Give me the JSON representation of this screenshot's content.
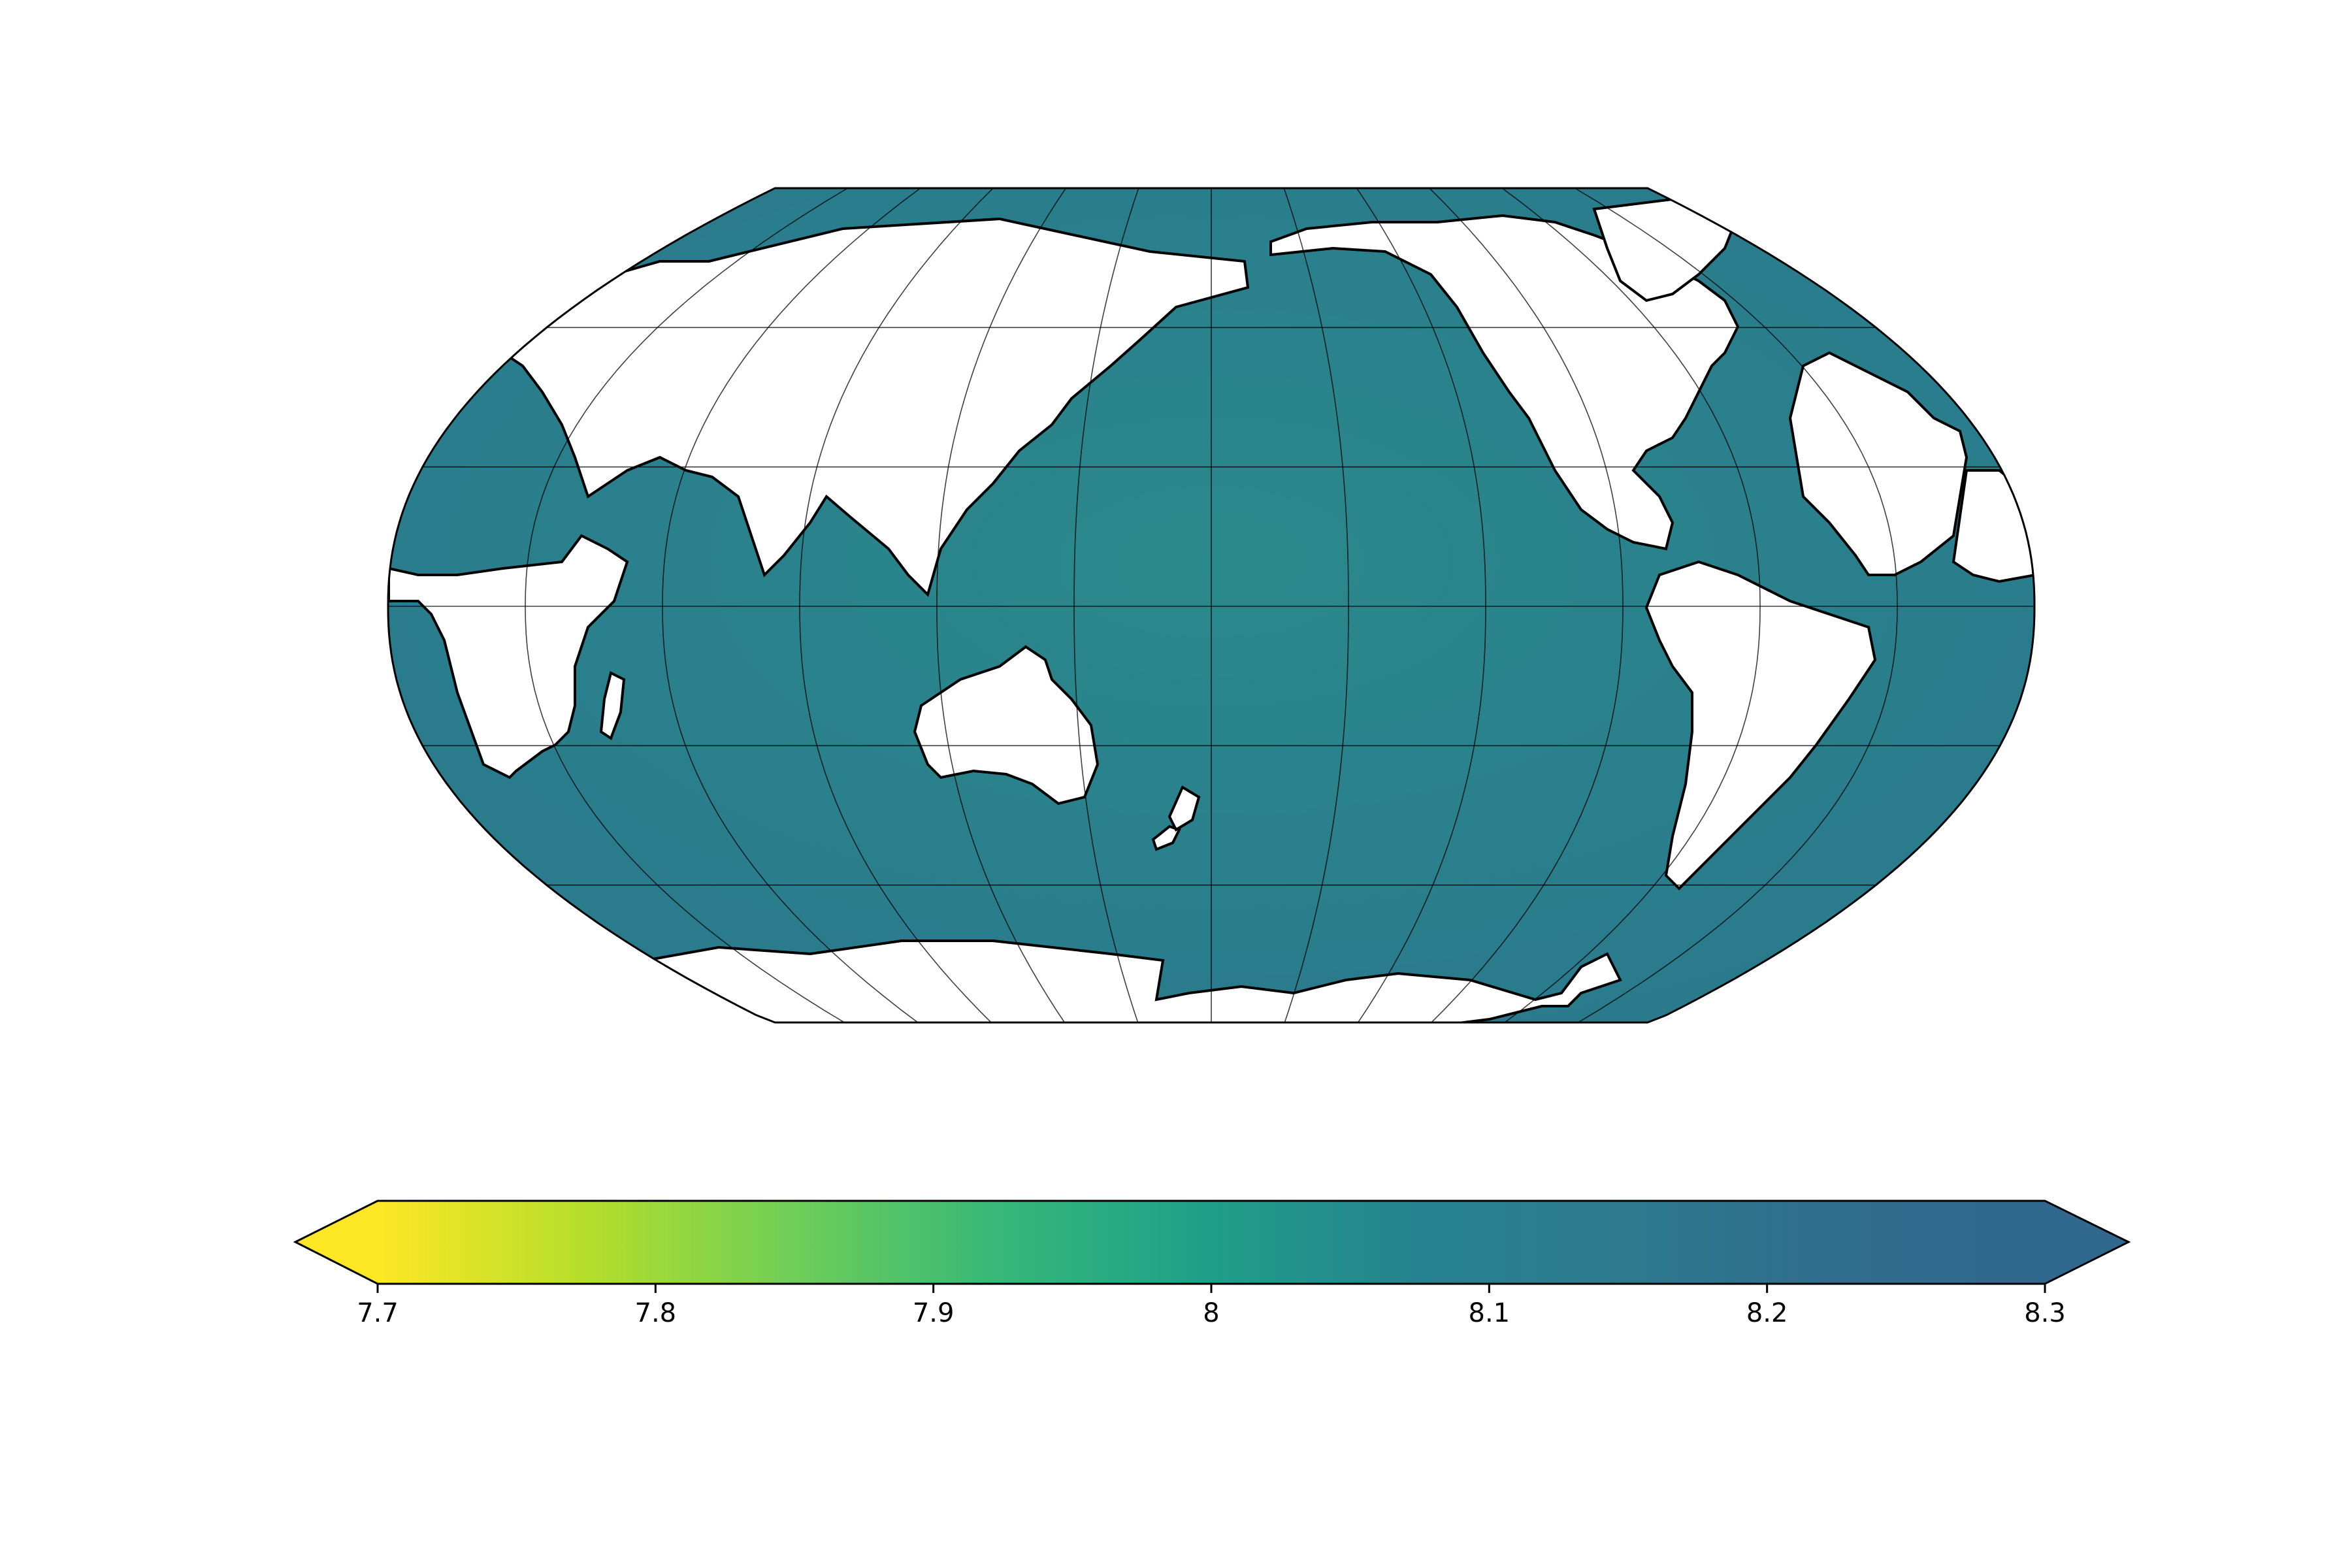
{
  "map": {
    "projection": "robinson",
    "central_longitude": 180,
    "ocean_color": "#2a7a8c",
    "land_color": "#ffffff",
    "coastline_color": "#000000",
    "graticule_color": "#000000",
    "graticule_latitudes": [
      -60,
      -30,
      0,
      30,
      60
    ],
    "graticule_longitudes": [
      -150,
      -120,
      -90,
      -60,
      -30,
      0,
      30,
      60,
      90,
      120,
      150,
      180
    ]
  },
  "colorbar": {
    "colormap": "viridis_r",
    "range": [
      7.7,
      8.3
    ],
    "extend": "both",
    "tick_values": [
      7.7,
      7.8,
      7.9,
      8.0,
      8.1,
      8.2,
      8.3
    ],
    "ticks": [
      "7.7",
      "7.8",
      "7.9",
      "8",
      "8.1",
      "8.2",
      "8.3"
    ],
    "color_low": "#fde725",
    "color_high": "#31688e"
  }
}
